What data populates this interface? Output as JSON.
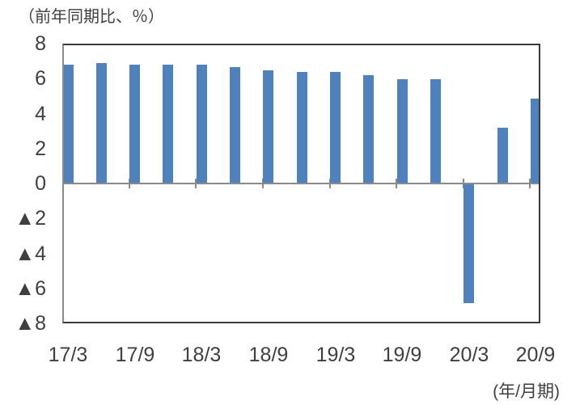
{
  "chart_data": {
    "type": "bar",
    "title": "（前年同期比、％）",
    "x_axis_note": "(年/月期)",
    "categories": [
      "17/3",
      "",
      "17/9",
      "",
      "18/3",
      "",
      "18/9",
      "",
      "19/3",
      "",
      "19/9",
      "",
      "20/3",
      "",
      "20/9"
    ],
    "values": [
      6.8,
      6.9,
      6.8,
      6.8,
      6.8,
      6.7,
      6.5,
      6.4,
      6.4,
      6.2,
      6.0,
      6.0,
      -6.8,
      3.2,
      4.9
    ],
    "x_tick_labels": [
      "17/3",
      "17/9",
      "18/3",
      "18/9",
      "19/3",
      "19/9",
      "20/3",
      "20/9"
    ],
    "y_ticks": [
      {
        "value": 8,
        "label": "8"
      },
      {
        "value": 6,
        "label": "6"
      },
      {
        "value": 4,
        "label": "4"
      },
      {
        "value": 2,
        "label": "2"
      },
      {
        "value": 0,
        "label": "0"
      },
      {
        "value": -2,
        "label": "▲2"
      },
      {
        "value": -4,
        "label": "▲4"
      },
      {
        "value": -6,
        "label": "▲6"
      },
      {
        "value": -8,
        "label": "▲8"
      }
    ],
    "ylim": [
      -8,
      8
    ],
    "negative_notation": "▲",
    "grid": false,
    "legend_position": "none",
    "colors": {
      "bar": "#4f81bd",
      "plot_border": "#3a3a3a",
      "zero_line": "#8a8a8a",
      "y_axis_line": "#8a8a8a",
      "text": "#3f3f3f"
    }
  }
}
